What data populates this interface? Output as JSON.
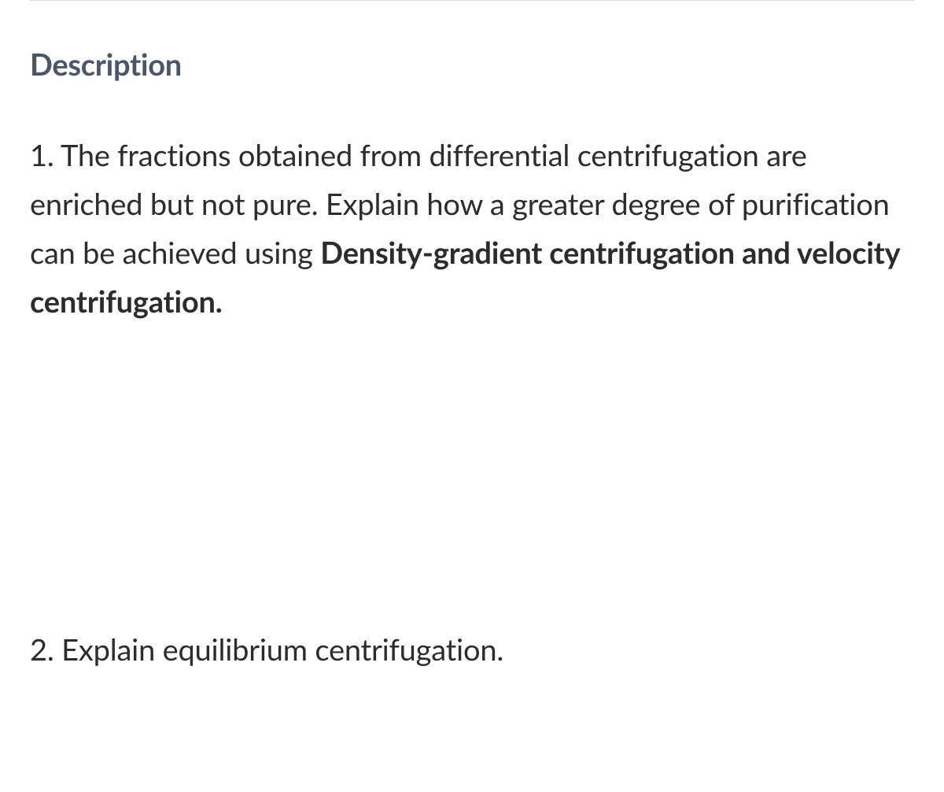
{
  "heading": "Description",
  "questions": {
    "q1": {
      "prefix": "1. The fractions obtained from differential centrifugation are enriched but not pure. Explain how a greater degree of purification can be achieved using ",
      "bold": "Density-gradient centrifugation and velocity centrifugation."
    },
    "q2": {
      "text": "2. Explain equilibrium centrifugation."
    }
  },
  "colors": {
    "heading_color": "#4b5768",
    "text_color": "#2c2c2c",
    "divider_color": "#dddddd",
    "background_color": "#ffffff"
  },
  "typography": {
    "heading_fontsize": 38,
    "heading_weight": 700,
    "body_fontsize": 38,
    "body_weight": 400,
    "bold_weight": 700,
    "line_height": 1.63,
    "font_family": "Lato, Helvetica Neue, Helvetica, Arial, sans-serif"
  }
}
